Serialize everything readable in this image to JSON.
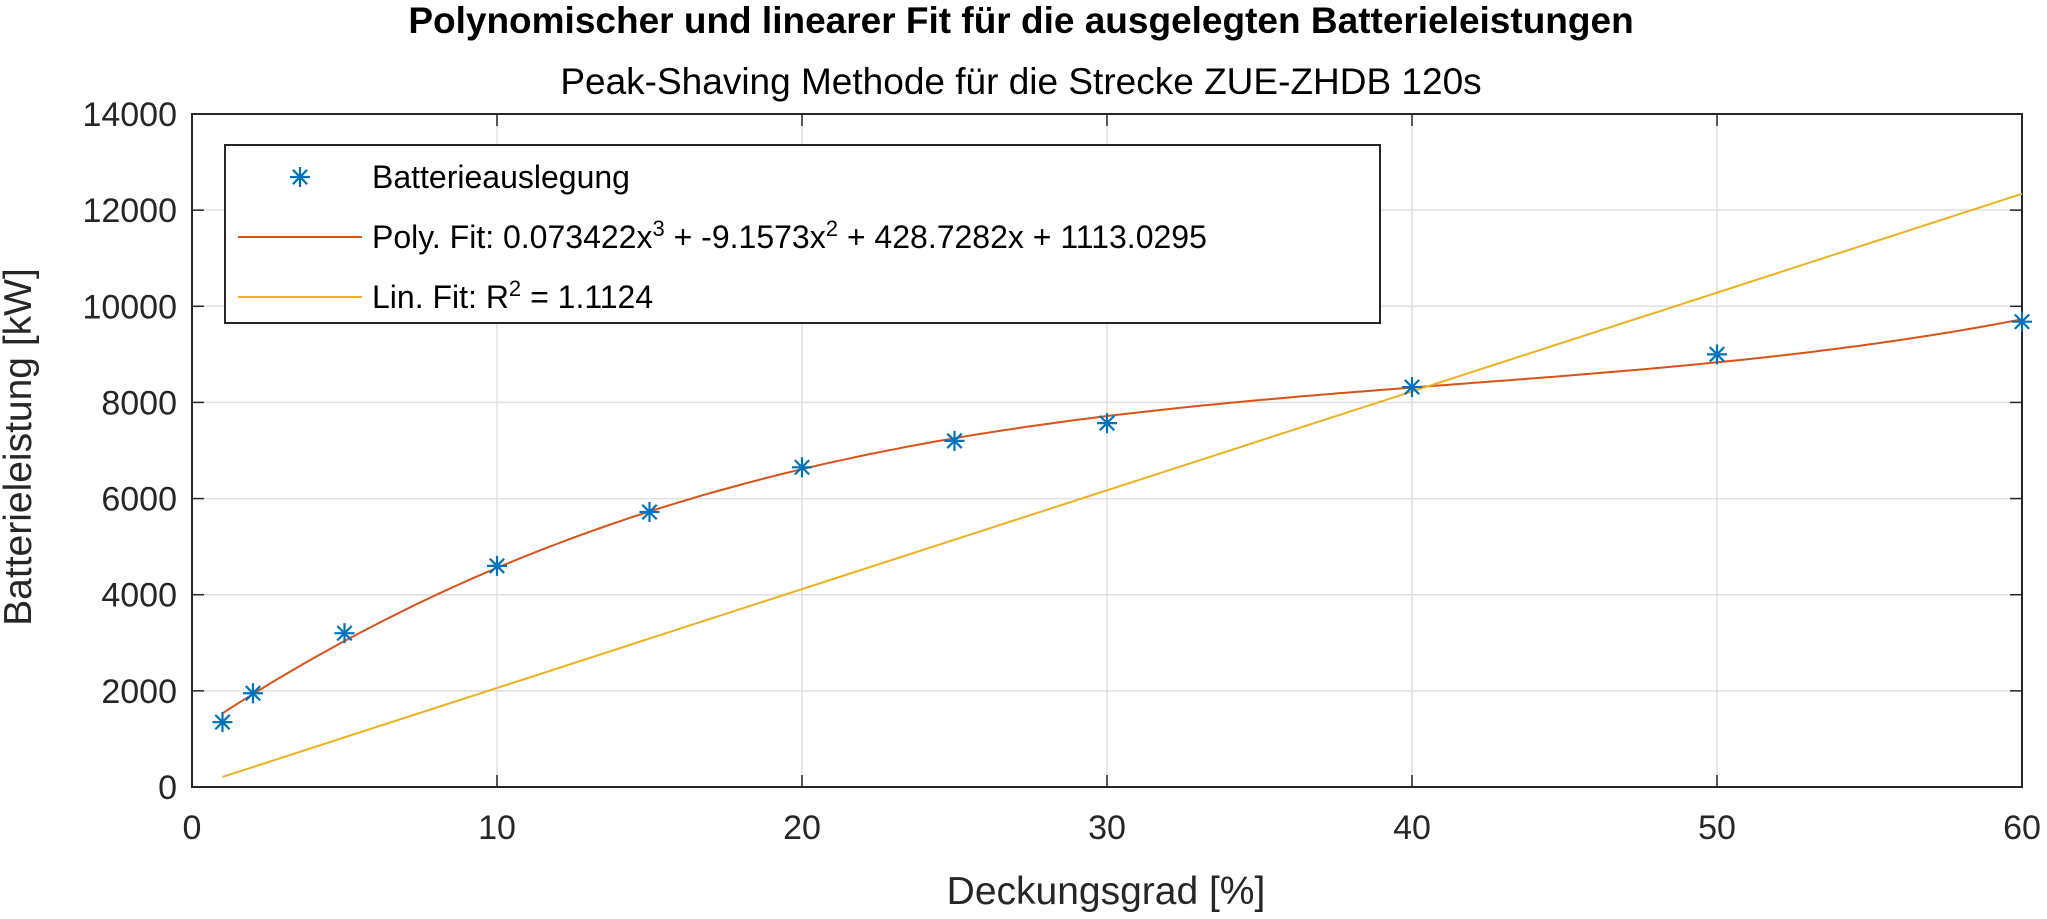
{
  "chart_data": {
    "type": "line",
    "title": "Polynomischer und linearer Fit für die ausgelegten Batterieleistungen",
    "subtitle": "Peak-Shaving Methode für die Strecke ZUE-ZHDB 120s",
    "xlabel": "Deckungsgrad [%]",
    "ylabel": "Batterieleistung [kW]",
    "xlim": [
      0,
      60
    ],
    "ylim": [
      0,
      14000
    ],
    "xticks": [
      0,
      10,
      20,
      30,
      40,
      50,
      60
    ],
    "yticks": [
      0,
      2000,
      4000,
      6000,
      8000,
      10000,
      12000,
      14000
    ],
    "grid": true,
    "legend_position": "top-left",
    "series": [
      {
        "name": "Batterieauslegung",
        "kind": "scatter",
        "marker": "asterisk",
        "color": "#0072BD",
        "x": [
          1,
          2,
          5,
          10,
          15,
          20,
          25,
          30,
          40,
          50,
          60
        ],
        "y": [
          1350,
          1950,
          3200,
          4600,
          5720,
          6650,
          7200,
          7570,
          8320,
          9000,
          9680
        ]
      },
      {
        "name": "Poly. Fit: 0.073422x³ + -9.1573x² + 428.7282x + 1113.0295",
        "kind": "line",
        "color": "#D95319",
        "coefficients": [
          0.073422,
          -9.1573,
          428.7282,
          1113.0295
        ],
        "x": [
          1,
          2,
          5,
          10,
          15,
          20,
          25,
          30,
          40,
          50,
          60
        ],
        "y": [
          1533,
          1935,
          3048,
          4565,
          5731,
          6627,
          7278,
          7711,
          8315,
          8849,
          9710
        ]
      },
      {
        "name": "Lin. Fit: R² = 1.1124",
        "kind": "line",
        "color": "#EDB120",
        "x": [
          1,
          60
        ],
        "y": [
          210,
          12340
        ]
      }
    ],
    "legend": {
      "items": [
        {
          "text": "Batterieauslegung",
          "marker": "asterisk",
          "color": "#0072BD"
        },
        {
          "parts": [
            [
              "Poly. Fit: 0.073422x",
              ""
            ],
            [
              "3",
              "sup"
            ],
            [
              " + -9.1573x",
              ""
            ],
            [
              "2",
              "sup"
            ],
            [
              " + 428.7282x + 1113.0295",
              ""
            ]
          ],
          "marker": "line",
          "color": "#D95319"
        },
        {
          "parts": [
            [
              "Lin. Fit: R",
              ""
            ],
            [
              "2",
              "sup"
            ],
            [
              " = 1.1124",
              ""
            ]
          ],
          "marker": "line",
          "color": "#EDB120"
        }
      ]
    }
  }
}
